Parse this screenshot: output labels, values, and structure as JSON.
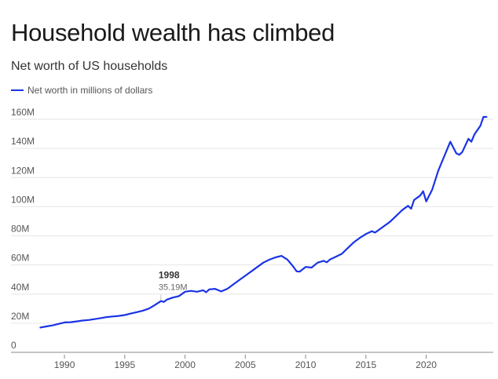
{
  "chart_data": {
    "type": "line",
    "title": "Household wealth has climbed",
    "subtitle": "Net worth of US households",
    "xlabel": "",
    "ylabel": "",
    "xlim": [
      1987,
      2025.5
    ],
    "ylim": [
      0,
      160
    ],
    "x_ticks": [
      1990,
      1995,
      2000,
      2005,
      2010,
      2015,
      2020
    ],
    "y_ticks": [
      0,
      20,
      40,
      60,
      80,
      100,
      120,
      140,
      160
    ],
    "y_tick_labels": [
      "0",
      "20M",
      "40M",
      "60M",
      "80M",
      "100M",
      "120M",
      "140M",
      "160M"
    ],
    "grid": "horizontal",
    "legend_placement": "top-left",
    "line_color": "#1a33e6",
    "annotation": {
      "year_label": "1998",
      "value_label": "35.19M",
      "x": 1998,
      "y": 35.19
    },
    "series": [
      {
        "name": "Net worth in millions of dollars",
        "points": [
          [
            1988.0,
            17.0
          ],
          [
            1988.5,
            17.8
          ],
          [
            1989.0,
            18.5
          ],
          [
            1989.5,
            19.5
          ],
          [
            1990.0,
            20.5
          ],
          [
            1990.5,
            20.7
          ],
          [
            1991.0,
            21.2
          ],
          [
            1991.5,
            21.8
          ],
          [
            1992.0,
            22.2
          ],
          [
            1992.5,
            22.8
          ],
          [
            1993.0,
            23.5
          ],
          [
            1993.5,
            24.2
          ],
          [
            1994.0,
            24.6
          ],
          [
            1994.5,
            25.0
          ],
          [
            1995.0,
            25.6
          ],
          [
            1995.5,
            26.6
          ],
          [
            1996.0,
            27.6
          ],
          [
            1996.5,
            28.6
          ],
          [
            1997.0,
            30.0
          ],
          [
            1997.5,
            32.5
          ],
          [
            1998.0,
            35.19
          ],
          [
            1998.25,
            34.6
          ],
          [
            1998.5,
            36.2
          ],
          [
            1999.0,
            37.6
          ],
          [
            1999.5,
            38.6
          ],
          [
            2000.0,
            41.6
          ],
          [
            2000.5,
            42.2
          ],
          [
            2001.0,
            41.6
          ],
          [
            2001.5,
            42.6
          ],
          [
            2001.75,
            41.2
          ],
          [
            2002.0,
            43.2
          ],
          [
            2002.5,
            43.6
          ],
          [
            2003.0,
            41.8
          ],
          [
            2003.5,
            43.6
          ],
          [
            2004.0,
            46.6
          ],
          [
            2004.5,
            49.6
          ],
          [
            2005.0,
            52.6
          ],
          [
            2005.5,
            55.6
          ],
          [
            2006.0,
            58.6
          ],
          [
            2006.5,
            61.6
          ],
          [
            2007.0,
            63.6
          ],
          [
            2007.5,
            65.2
          ],
          [
            2008.0,
            66.2
          ],
          [
            2008.5,
            63.6
          ],
          [
            2009.0,
            58.6
          ],
          [
            2009.25,
            55.6
          ],
          [
            2009.5,
            55.4
          ],
          [
            2010.0,
            58.6
          ],
          [
            2010.5,
            58.2
          ],
          [
            2011.0,
            61.6
          ],
          [
            2011.5,
            62.8
          ],
          [
            2011.75,
            61.8
          ],
          [
            2012.0,
            63.6
          ],
          [
            2012.5,
            65.6
          ],
          [
            2013.0,
            67.6
          ],
          [
            2013.5,
            71.6
          ],
          [
            2014.0,
            75.6
          ],
          [
            2014.5,
            78.6
          ],
          [
            2015.0,
            81.2
          ],
          [
            2015.5,
            83.2
          ],
          [
            2015.75,
            82.2
          ],
          [
            2016.0,
            83.6
          ],
          [
            2016.5,
            86.6
          ],
          [
            2017.0,
            89.6
          ],
          [
            2017.5,
            93.6
          ],
          [
            2018.0,
            97.6
          ],
          [
            2018.5,
            100.6
          ],
          [
            2018.75,
            98.6
          ],
          [
            2019.0,
            104.6
          ],
          [
            2019.5,
            107.6
          ],
          [
            2019.75,
            110.6
          ],
          [
            2020.0,
            103.6
          ],
          [
            2020.5,
            111.6
          ],
          [
            2021.0,
            124.6
          ],
          [
            2021.5,
            134.6
          ],
          [
            2022.0,
            144.6
          ],
          [
            2022.5,
            136.6
          ],
          [
            2022.75,
            135.6
          ],
          [
            2023.0,
            137.6
          ],
          [
            2023.5,
            146.6
          ],
          [
            2023.75,
            144.6
          ],
          [
            2024.0,
            149.6
          ],
          [
            2024.5,
            155.6
          ],
          [
            2024.75,
            161.6
          ],
          [
            2025.0,
            161.6
          ]
        ]
      }
    ]
  }
}
